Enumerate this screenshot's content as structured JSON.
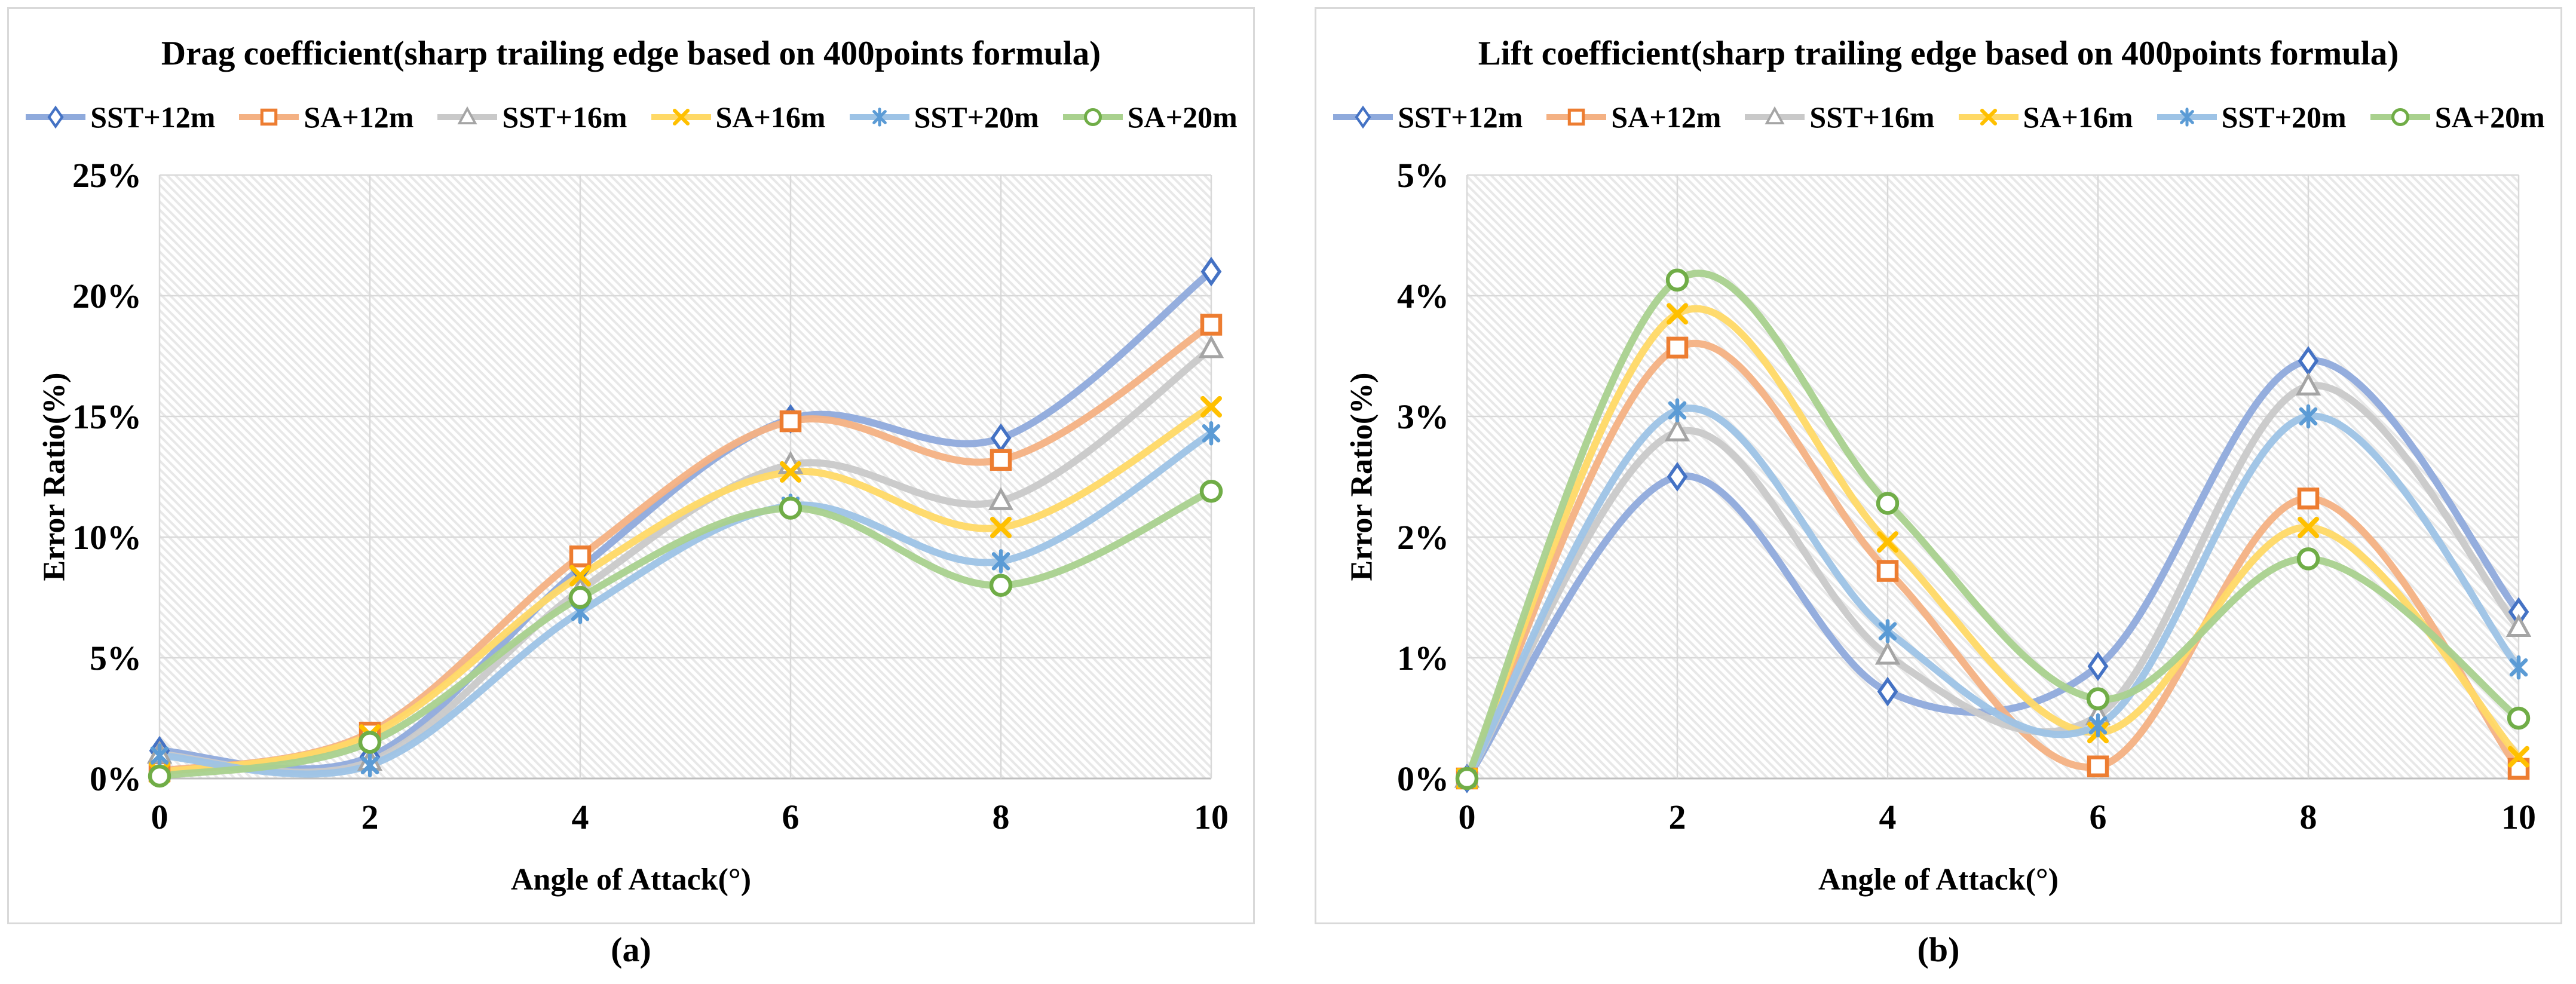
{
  "figure": {
    "captions": {
      "a": "(a)",
      "b": "(b)"
    },
    "colors": {
      "panel_border": "#d9d9d9",
      "gridline": "#d9d9d9",
      "axis_line": "#bfbfbf",
      "hatch": "#e8e8e8",
      "text": "#000000"
    }
  },
  "chart_data": [
    {
      "type": "line",
      "title": "Drag coefficient(sharp trailing edge based on 400points formula)",
      "xlabel": "Angle of Attack(°)",
      "ylabel": "Error Ratio(%)",
      "x": [
        0,
        2,
        4,
        6,
        8,
        10
      ],
      "xlim": [
        0,
        10
      ],
      "ylim": [
        0,
        25
      ],
      "ytick_step": 5,
      "ytick_labels": [
        "0%",
        "5%",
        "10%",
        "15%",
        "20%",
        "25%"
      ],
      "xtick_labels": [
        "0",
        "2",
        "4",
        "6",
        "8",
        "10"
      ],
      "grid": true,
      "smooth": true,
      "legend_position": "top",
      "plot_bg": "diagonal-hatch",
      "series": [
        {
          "name": "SST+12m",
          "marker": "diamond",
          "marker_color": "#4472C4",
          "line_color": "#8FAADC",
          "values": [
            1.15,
            0.9,
            8.7,
            14.9,
            14.1,
            21.0
          ]
        },
        {
          "name": "SA+12m",
          "marker": "square",
          "marker_color": "#ED7D31",
          "line_color": "#F4B183",
          "values": [
            0.3,
            1.9,
            9.2,
            14.8,
            13.2,
            18.8
          ]
        },
        {
          "name": "SST+16m",
          "marker": "triangle",
          "marker_color": "#A5A5A5",
          "line_color": "#C9C9C9",
          "values": [
            1.0,
            0.7,
            7.8,
            13.0,
            11.5,
            17.8
          ]
        },
        {
          "name": "SA+16m",
          "marker": "x",
          "marker_color": "#FFC000",
          "line_color": "#FFD966",
          "values": [
            0.25,
            1.8,
            8.4,
            12.7,
            10.4,
            15.4
          ]
        },
        {
          "name": "SST+20m",
          "marker": "asterisk",
          "marker_color": "#5B9BD5",
          "line_color": "#9DC3E6",
          "values": [
            0.95,
            0.55,
            6.9,
            11.3,
            9.0,
            14.3
          ]
        },
        {
          "name": "SA+20m",
          "marker": "circle",
          "marker_color": "#70AD47",
          "line_color": "#A9D18E",
          "values": [
            0.1,
            1.5,
            7.5,
            11.2,
            8.0,
            11.9
          ]
        }
      ]
    },
    {
      "type": "line",
      "title": "Lift coefficient(sharp trailing edge based on 400points formula)",
      "xlabel": "Angle of Attack(°)",
      "ylabel": "Error Ratio(%)",
      "x": [
        0,
        2,
        4,
        6,
        8,
        10
      ],
      "xlim": [
        0,
        10
      ],
      "ylim": [
        0,
        5
      ],
      "ytick_step": 1,
      "ytick_labels": [
        "0%",
        "1%",
        "2%",
        "3%",
        "4%",
        "5%"
      ],
      "xtick_labels": [
        "0",
        "2",
        "4",
        "6",
        "8",
        "10"
      ],
      "grid": true,
      "smooth": true,
      "legend_position": "top",
      "plot_bg": "diagonal-hatch",
      "series": [
        {
          "name": "SST+12m",
          "marker": "diamond",
          "marker_color": "#4472C4",
          "line_color": "#8FAADC",
          "values": [
            0,
            2.5,
            0.72,
            0.93,
            3.46,
            1.38
          ]
        },
        {
          "name": "SA+12m",
          "marker": "square",
          "marker_color": "#ED7D31",
          "line_color": "#F4B183",
          "values": [
            0,
            3.57,
            1.72,
            0.1,
            2.32,
            0.08
          ]
        },
        {
          "name": "SST+16m",
          "marker": "triangle",
          "marker_color": "#A5A5A5",
          "line_color": "#C9C9C9",
          "values": [
            0,
            2.87,
            1.02,
            0.52,
            3.25,
            1.25
          ]
        },
        {
          "name": "SA+16m",
          "marker": "x",
          "marker_color": "#FFC000",
          "line_color": "#FFD966",
          "values": [
            0,
            3.85,
            1.96,
            0.38,
            2.08,
            0.18
          ]
        },
        {
          "name": "SST+20m",
          "marker": "asterisk",
          "marker_color": "#5B9BD5",
          "line_color": "#9DC3E6",
          "values": [
            0,
            3.05,
            1.22,
            0.44,
            3.0,
            0.92
          ]
        },
        {
          "name": "SA+20m",
          "marker": "circle",
          "marker_color": "#70AD47",
          "line_color": "#A9D18E",
          "values": [
            0,
            4.13,
            2.28,
            0.66,
            1.82,
            0.5
          ]
        }
      ]
    }
  ]
}
